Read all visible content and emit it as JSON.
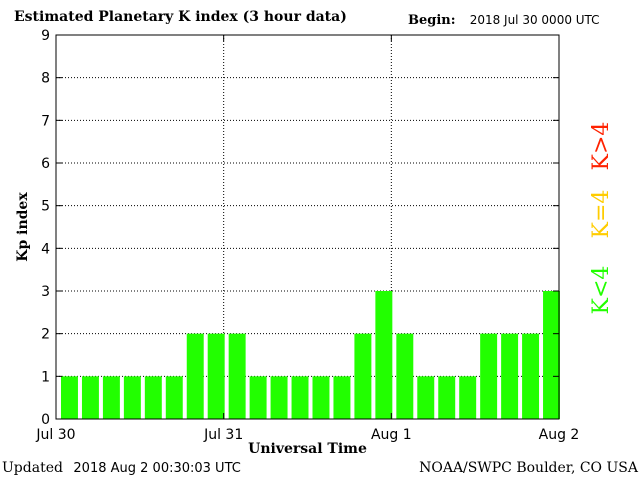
{
  "header": {
    "title": "Estimated Planetary K index (3 hour data)",
    "begin_label": "Begin:",
    "begin_value": "2018 Jul 30 0000 UTC"
  },
  "footer": {
    "updated_label": "Updated",
    "updated_value": "2018 Aug  2 00:30:03 UTC",
    "credit": "NOAA/SWPC Boulder, CO USA"
  },
  "chart_data": {
    "type": "bar",
    "title": "Estimated Planetary K index (3 hour data)",
    "xlabel": "Universal Time",
    "ylabel": "Kp index",
    "ylim": [
      0,
      9
    ],
    "yticks": [
      0,
      1,
      2,
      3,
      4,
      5,
      6,
      7,
      8,
      9
    ],
    "xlim_days": [
      0,
      3
    ],
    "xtick_labels": [
      "Jul 30",
      "Jul 31",
      "Aug 1",
      "Aug 2"
    ],
    "xtick_positions_days": [
      0,
      1,
      2,
      3
    ],
    "grid": true,
    "bar_color": "#22ff00",
    "values": [
      1,
      1,
      1,
      1,
      1,
      1,
      2,
      2,
      2,
      1,
      1,
      1,
      1,
      1,
      2,
      3,
      2,
      1,
      1,
      1,
      2,
      2,
      2,
      3
    ],
    "legend": [
      {
        "label": "K<4",
        "color": "#22ff00"
      },
      {
        "label": "K=4",
        "color": "#ffcc00"
      },
      {
        "label": "K>4",
        "color": "#ff2200"
      }
    ]
  }
}
